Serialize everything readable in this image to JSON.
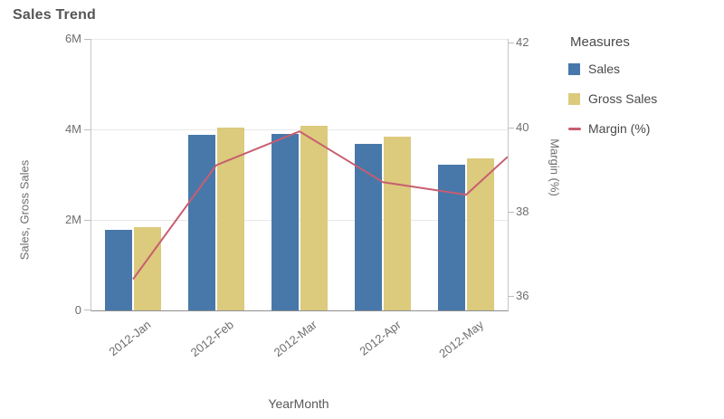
{
  "title": "Sales Trend",
  "chart_data": {
    "type": "combo",
    "x_axis": {
      "title": "YearMonth"
    },
    "categories": [
      "2012-Jan",
      "2012-Feb",
      "2012-Mar",
      "2012-Apr",
      "2012-May"
    ],
    "series": [
      {
        "name": "Sales",
        "type": "bar",
        "axis": "left",
        "color": "#4878aa",
        "values": [
          1.78,
          3.88,
          3.9,
          3.68,
          3.22
        ],
        "unit": "millions"
      },
      {
        "name": "Gross Sales",
        "type": "bar",
        "axis": "left",
        "color": "#dcca7d",
        "values": [
          1.85,
          4.05,
          4.08,
          3.84,
          3.36
        ],
        "unit": "millions"
      },
      {
        "name": "Margin (%)",
        "type": "line",
        "axis": "right",
        "color": "#c75e70",
        "values": [
          36.4,
          39.1,
          39.9,
          38.7,
          38.4
        ],
        "unit": "percent",
        "clipped_next_value": 39.3
      }
    ],
    "left_axis": {
      "title": "Sales, Gross Sales",
      "ticks": [
        {
          "label": "0",
          "value": 0
        },
        {
          "label": "2M",
          "value": 2
        },
        {
          "label": "4M",
          "value": 4
        },
        {
          "label": "6M",
          "value": 6
        }
      ],
      "range": [
        0,
        6
      ],
      "gridlines": true
    },
    "right_axis": {
      "title": "Margin (%)",
      "ticks": [
        {
          "label": "36",
          "value": 36
        },
        {
          "label": "38",
          "value": 38
        },
        {
          "label": "40",
          "value": 40
        },
        {
          "label": "42",
          "value": 42
        }
      ],
      "range": [
        35.66,
        42.09
      ],
      "gridlines": false
    },
    "legend": {
      "title": "Measures",
      "position": "right"
    }
  },
  "colors": {
    "background": "#ffffff",
    "title_text": "#555555",
    "axis_text": "#6e6e6e",
    "grid": "#e9e9e9",
    "axis_line": "#c6c6c6",
    "baseline": "#8f8f8f"
  }
}
